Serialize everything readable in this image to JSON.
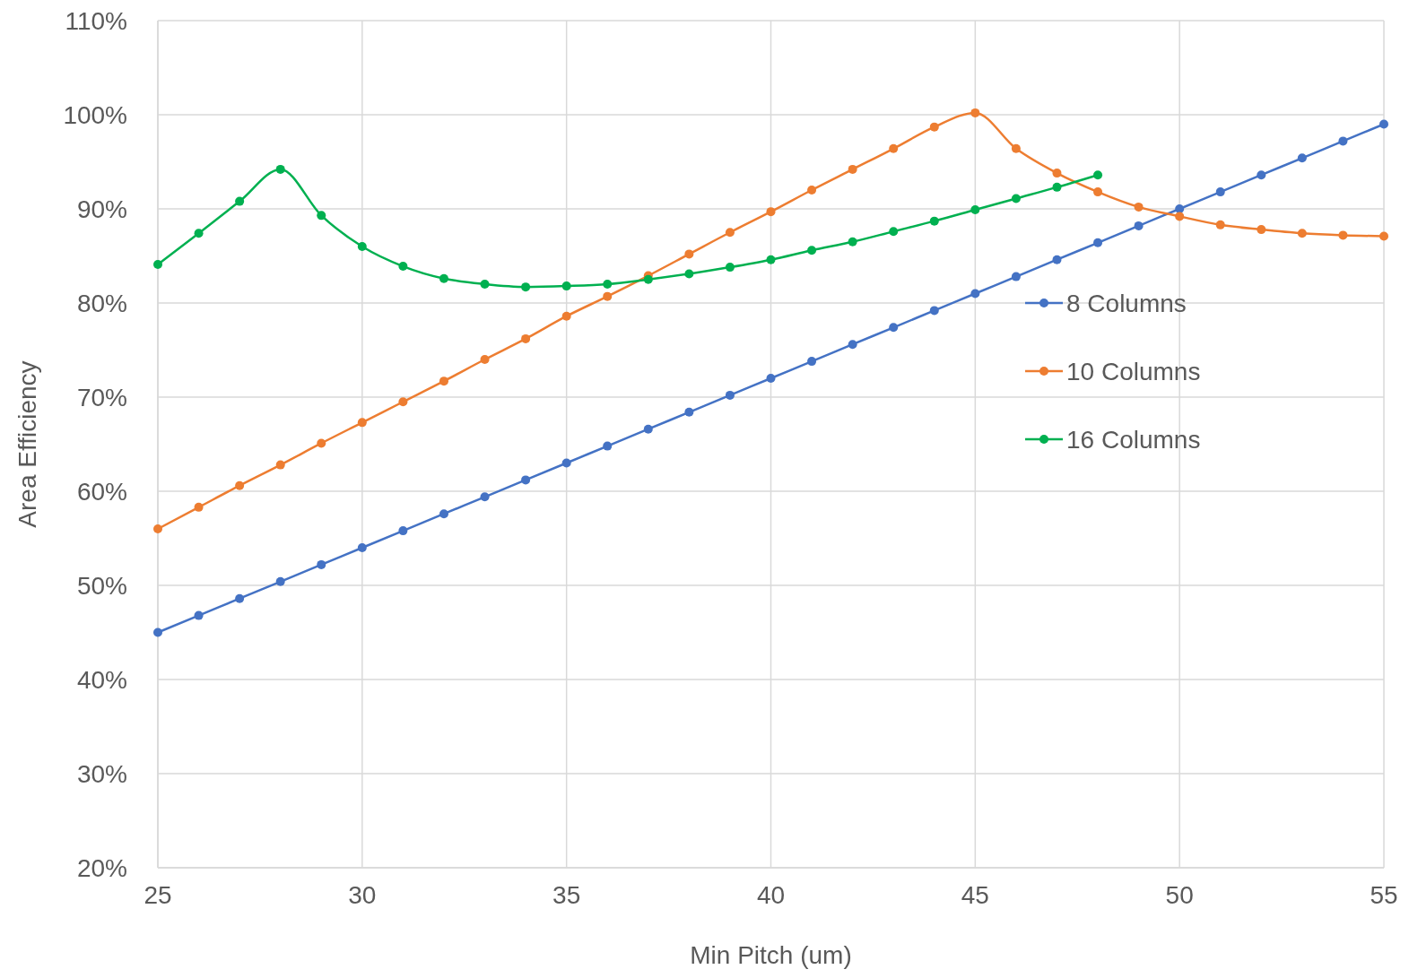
{
  "chart_data": {
    "type": "line",
    "xlabel": "Min Pitch (um)",
    "ylabel": "Area Efficiency",
    "x": [
      25,
      26,
      27,
      28,
      29,
      30,
      31,
      32,
      33,
      34,
      35,
      36,
      37,
      38,
      39,
      40,
      41,
      42,
      43,
      44,
      45,
      46,
      47,
      48,
      49,
      50,
      51,
      52,
      53,
      54,
      55
    ],
    "series": [
      {
        "name": "8 Columns",
        "color": "#4472c4",
        "values": [
          45,
          46.8,
          48.6,
          50.4,
          52.2,
          54,
          55.8,
          57.6,
          59.4,
          61.2,
          63,
          64.8,
          66.6,
          68.4,
          70.2,
          72,
          73.8,
          75.6,
          77.4,
          79.2,
          81,
          82.8,
          84.6,
          86.4,
          88.2,
          90,
          91.8,
          93.6,
          95.4,
          97.2,
          99
        ]
      },
      {
        "name": "10 Columns",
        "color": "#ed7d31",
        "values": [
          56,
          58.3,
          60.6,
          62.8,
          65.1,
          67.3,
          69.5,
          71.7,
          74,
          76.2,
          78.6,
          80.7,
          82.9,
          85.2,
          87.5,
          89.7,
          92,
          94.2,
          96.4,
          98.7,
          100.2,
          96.4,
          93.8,
          91.8,
          90.2,
          89.2,
          88.3,
          87.8,
          87.4,
          87.2,
          87.1
        ]
      },
      {
        "name": "16 Columns",
        "color": "#00b050",
        "values": [
          84.1,
          87.4,
          90.8,
          94.2,
          89.3,
          86,
          83.9,
          82.6,
          82,
          81.7,
          81.8,
          82,
          82.5,
          83.1,
          83.8,
          84.6,
          85.6,
          86.5,
          87.6,
          88.7,
          89.9,
          91.1,
          92.3,
          93.6,
          null,
          null,
          null,
          null,
          null,
          null,
          null
        ]
      }
    ],
    "xlim": [
      25,
      55
    ],
    "xticks": [
      25,
      30,
      35,
      40,
      45,
      50,
      55
    ],
    "ylim": [
      20,
      110
    ],
    "yticks": [
      {
        "value": 20,
        "label": "20%"
      },
      {
        "value": 30,
        "label": "30%"
      },
      {
        "value": 40,
        "label": "40%"
      },
      {
        "value": 50,
        "label": "50%"
      },
      {
        "value": 60,
        "label": "60%"
      },
      {
        "value": 70,
        "label": "70%"
      },
      {
        "value": 80,
        "label": "80%"
      },
      {
        "value": 90,
        "label": "90%"
      },
      {
        "value": 100,
        "label": "100%"
      },
      {
        "value": 110,
        "label": "110%"
      }
    ],
    "grid": true,
    "legend": "right",
    "marker": "circle",
    "line_style": "solid"
  }
}
